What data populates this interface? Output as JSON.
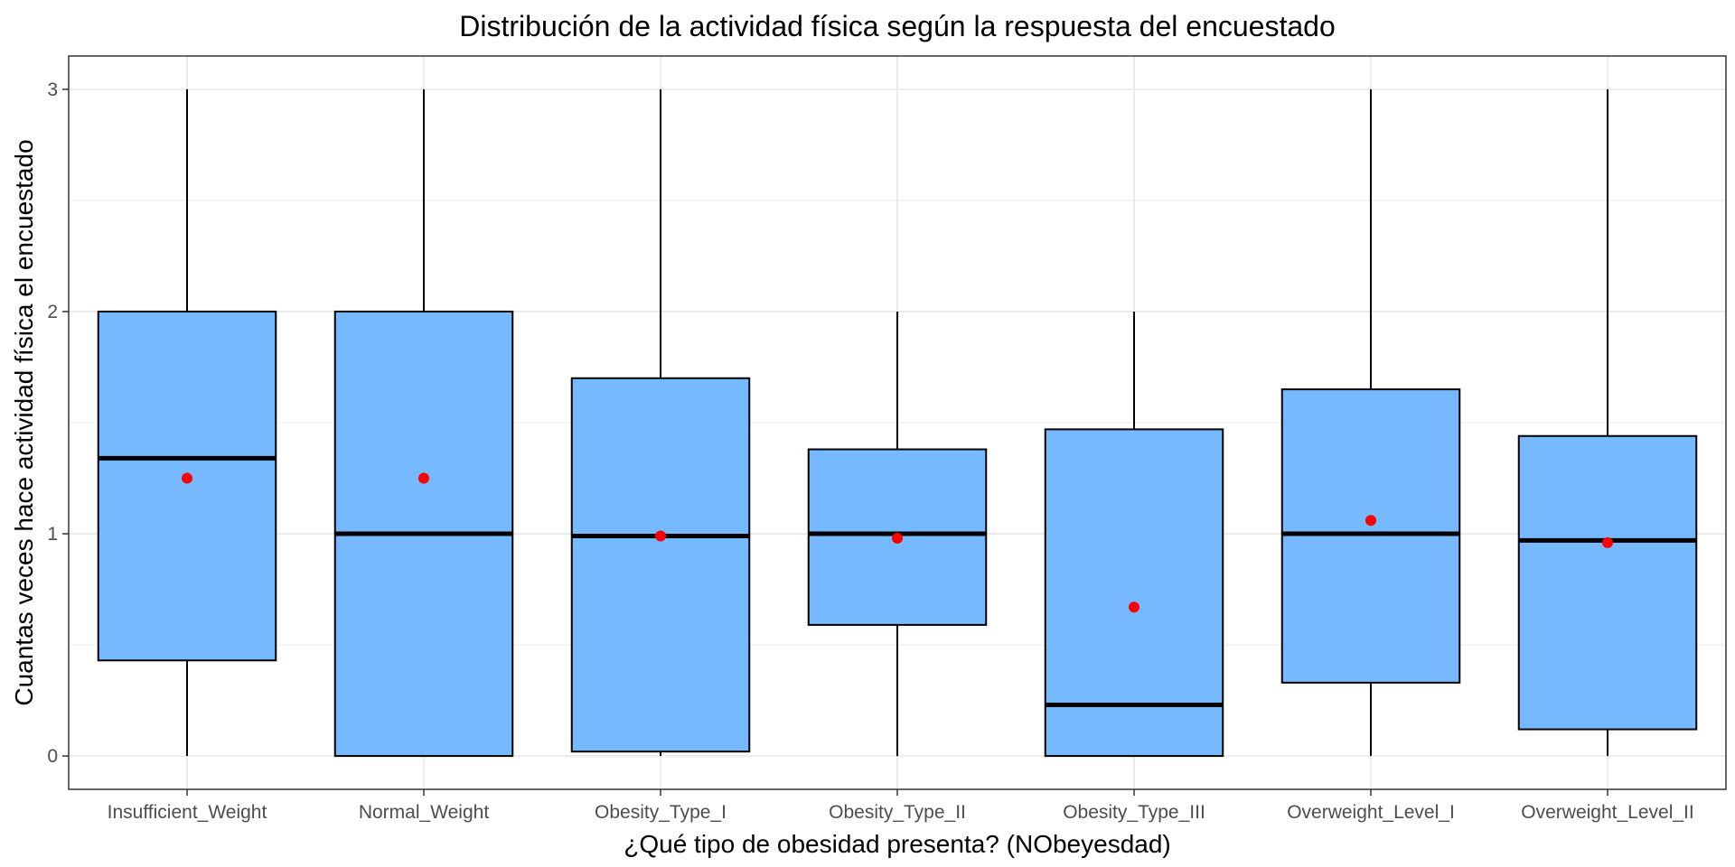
{
  "chart_data": {
    "type": "boxplot",
    "title": "Distribución de la actividad física según la respuesta del encuestado",
    "xlabel": "¿Qué tipo de obesidad presenta? (NObeyesdad)",
    "ylabel": "Cuantas veces hace actividad física el encuestado",
    "categories": [
      "Insufficient_Weight",
      "Normal_Weight",
      "Obesity_Type_I",
      "Obesity_Type_II",
      "Obesity_Type_III",
      "Overweight_Level_I",
      "Overweight_Level_II"
    ],
    "yticks": [
      0,
      1,
      2,
      3
    ],
    "ylim": [
      -0.15,
      3.15
    ],
    "grid": true,
    "legend": "none",
    "box_fill": "#76b9fe",
    "box_stroke": "#000000",
    "mean_color": "#ff0000",
    "grid_color": "#ebebeb",
    "series": [
      {
        "category": "Insufficient_Weight",
        "whisker_low": 0,
        "q1": 0.43,
        "median": 1.34,
        "q3": 2.0,
        "whisker_high": 3,
        "mean": 1.25
      },
      {
        "category": "Normal_Weight",
        "whisker_low": 0,
        "q1": 0.0,
        "median": 1.0,
        "q3": 2.0,
        "whisker_high": 3,
        "mean": 1.25
      },
      {
        "category": "Obesity_Type_I",
        "whisker_low": 0,
        "q1": 0.02,
        "median": 0.99,
        "q3": 1.7,
        "whisker_high": 3,
        "mean": 0.99
      },
      {
        "category": "Obesity_Type_II",
        "whisker_low": 0,
        "q1": 0.59,
        "median": 1.0,
        "q3": 1.38,
        "whisker_high": 2,
        "mean": 0.98
      },
      {
        "category": "Obesity_Type_III",
        "whisker_low": 0,
        "q1": 0.0,
        "median": 0.23,
        "q3": 1.47,
        "whisker_high": 2,
        "mean": 0.67
      },
      {
        "category": "Overweight_Level_I",
        "whisker_low": 0,
        "q1": 0.33,
        "median": 1.0,
        "q3": 1.65,
        "whisker_high": 3,
        "mean": 1.06
      },
      {
        "category": "Overweight_Level_II",
        "whisker_low": 0,
        "q1": 0.12,
        "median": 0.97,
        "q3": 1.44,
        "whisker_high": 3,
        "mean": 0.96
      }
    ]
  }
}
